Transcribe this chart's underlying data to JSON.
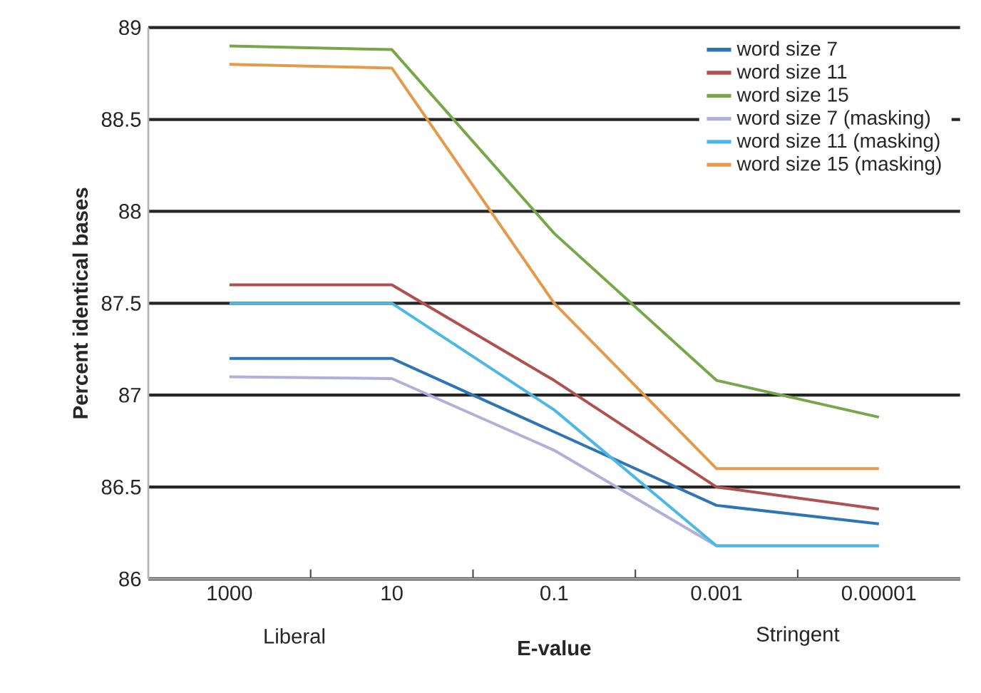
{
  "chart_data": {
    "type": "line",
    "xlabel": "E-value",
    "ylabel": "Percent identical bases",
    "categories": [
      "1000",
      "10",
      "0.1",
      "0.001",
      "0.00001"
    ],
    "ylim": [
      86,
      89
    ],
    "yticks": [
      86,
      86.5,
      87,
      87.5,
      88,
      88.5,
      89
    ],
    "grid": "y",
    "legend": "top right",
    "annotations": [
      "Liberal",
      "Stringent"
    ],
    "series": [
      {
        "name": "word size 7",
        "color": "#2e75b6",
        "values": [
          87.2,
          87.2,
          86.8,
          86.4,
          86.3
        ]
      },
      {
        "name": "word size 11",
        "color": "#b0504f",
        "values": [
          87.6,
          87.6,
          87.08,
          86.5,
          86.38
        ]
      },
      {
        "name": "word size 15",
        "color": "#77a74a",
        "values": [
          88.9,
          88.88,
          87.88,
          87.08,
          86.88
        ]
      },
      {
        "name": "word size 7 (masking)",
        "color": "#b0b0d8",
        "values": [
          87.1,
          87.09,
          86.7,
          86.18,
          86.18
        ]
      },
      {
        "name": "word size 11 (masking)",
        "color": "#4db8e6",
        "values": [
          87.5,
          87.5,
          86.92,
          86.18,
          86.18
        ]
      },
      {
        "name": "word size 15 (masking)",
        "color": "#e49a4a",
        "values": [
          88.8,
          88.78,
          87.5,
          86.6,
          86.6
        ]
      }
    ]
  }
}
